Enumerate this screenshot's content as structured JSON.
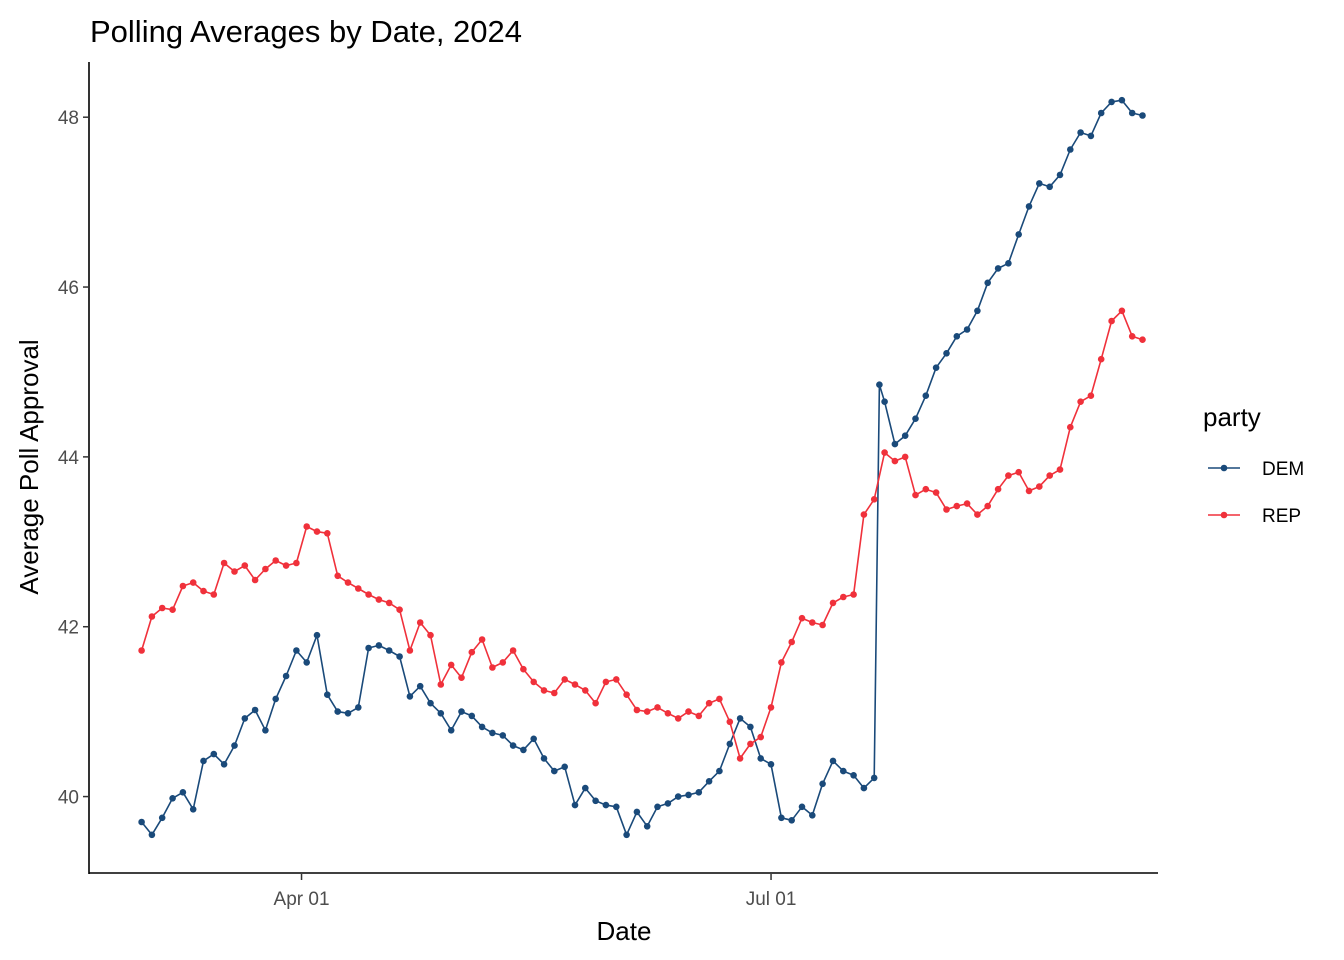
{
  "chart_data": {
    "type": "line",
    "title": "Polling Averages by Date, 2024",
    "xlabel": "Date",
    "ylabel": "Average Poll Approval",
    "x_ticks": [
      {
        "date": "2024-04-01",
        "label": "Apr 01"
      },
      {
        "date": "2024-07-01",
        "label": "Jul 01"
      }
    ],
    "y_ticks": [
      40,
      42,
      44,
      46,
      48
    ],
    "xlim": [
      "2024-02-20",
      "2024-09-14"
    ],
    "ylim": [
      39.1,
      48.65
    ],
    "grid": false,
    "legend": {
      "title": "party",
      "position": "right"
    },
    "series": [
      {
        "name": "DEM",
        "color": "#1a4a7a",
        "marker": "circle",
        "points": [
          [
            "2024-03-01",
            39.7
          ],
          [
            "2024-03-03",
            39.55
          ],
          [
            "2024-03-05",
            39.75
          ],
          [
            "2024-03-07",
            39.98
          ],
          [
            "2024-03-09",
            40.05
          ],
          [
            "2024-03-11",
            39.85
          ],
          [
            "2024-03-13",
            40.42
          ],
          [
            "2024-03-15",
            40.5
          ],
          [
            "2024-03-17",
            40.38
          ],
          [
            "2024-03-19",
            40.6
          ],
          [
            "2024-03-21",
            40.92
          ],
          [
            "2024-03-23",
            41.02
          ],
          [
            "2024-03-25",
            40.78
          ],
          [
            "2024-03-27",
            41.15
          ],
          [
            "2024-03-29",
            41.42
          ],
          [
            "2024-03-31",
            41.72
          ],
          [
            "2024-04-02",
            41.58
          ],
          [
            "2024-04-04",
            41.9
          ],
          [
            "2024-04-06",
            41.2
          ],
          [
            "2024-04-08",
            41.0
          ],
          [
            "2024-04-10",
            40.98
          ],
          [
            "2024-04-12",
            41.05
          ],
          [
            "2024-04-14",
            41.75
          ],
          [
            "2024-04-16",
            41.78
          ],
          [
            "2024-04-18",
            41.72
          ],
          [
            "2024-04-20",
            41.65
          ],
          [
            "2024-04-22",
            41.18
          ],
          [
            "2024-04-24",
            41.3
          ],
          [
            "2024-04-26",
            41.1
          ],
          [
            "2024-04-28",
            40.98
          ],
          [
            "2024-04-30",
            40.78
          ],
          [
            "2024-05-02",
            41.0
          ],
          [
            "2024-05-04",
            40.95
          ],
          [
            "2024-05-06",
            40.82
          ],
          [
            "2024-05-08",
            40.75
          ],
          [
            "2024-05-10",
            40.72
          ],
          [
            "2024-05-12",
            40.6
          ],
          [
            "2024-05-14",
            40.55
          ],
          [
            "2024-05-16",
            40.68
          ],
          [
            "2024-05-18",
            40.45
          ],
          [
            "2024-05-20",
            40.3
          ],
          [
            "2024-05-22",
            40.35
          ],
          [
            "2024-05-24",
            39.9
          ],
          [
            "2024-05-26",
            40.1
          ],
          [
            "2024-05-28",
            39.95
          ],
          [
            "2024-05-30",
            39.9
          ],
          [
            "2024-06-01",
            39.88
          ],
          [
            "2024-06-03",
            39.55
          ],
          [
            "2024-06-05",
            39.82
          ],
          [
            "2024-06-07",
            39.65
          ],
          [
            "2024-06-09",
            39.88
          ],
          [
            "2024-06-11",
            39.92
          ],
          [
            "2024-06-13",
            40.0
          ],
          [
            "2024-06-15",
            40.02
          ],
          [
            "2024-06-17",
            40.05
          ],
          [
            "2024-06-19",
            40.18
          ],
          [
            "2024-06-21",
            40.3
          ],
          [
            "2024-06-23",
            40.62
          ],
          [
            "2024-06-25",
            40.92
          ],
          [
            "2024-06-27",
            40.82
          ],
          [
            "2024-06-29",
            40.45
          ],
          [
            "2024-07-01",
            40.38
          ],
          [
            "2024-07-03",
            39.75
          ],
          [
            "2024-07-05",
            39.72
          ],
          [
            "2024-07-07",
            39.88
          ],
          [
            "2024-07-09",
            39.78
          ],
          [
            "2024-07-11",
            40.15
          ],
          [
            "2024-07-13",
            40.42
          ],
          [
            "2024-07-15",
            40.3
          ],
          [
            "2024-07-17",
            40.25
          ],
          [
            "2024-07-19",
            40.1
          ],
          [
            "2024-07-21",
            40.22
          ],
          [
            "2024-07-22",
            44.85
          ],
          [
            "2024-07-23",
            44.65
          ],
          [
            "2024-07-25",
            44.15
          ],
          [
            "2024-07-27",
            44.25
          ],
          [
            "2024-07-29",
            44.45
          ],
          [
            "2024-07-31",
            44.72
          ],
          [
            "2024-08-02",
            45.05
          ],
          [
            "2024-08-04",
            45.22
          ],
          [
            "2024-08-06",
            45.42
          ],
          [
            "2024-08-08",
            45.5
          ],
          [
            "2024-08-10",
            45.72
          ],
          [
            "2024-08-12",
            46.05
          ],
          [
            "2024-08-14",
            46.22
          ],
          [
            "2024-08-16",
            46.28
          ],
          [
            "2024-08-18",
            46.62
          ],
          [
            "2024-08-20",
            46.95
          ],
          [
            "2024-08-22",
            47.22
          ],
          [
            "2024-08-24",
            47.18
          ],
          [
            "2024-08-26",
            47.32
          ],
          [
            "2024-08-28",
            47.62
          ],
          [
            "2024-08-30",
            47.82
          ],
          [
            "2024-09-01",
            47.78
          ],
          [
            "2024-09-03",
            48.05
          ],
          [
            "2024-09-05",
            48.18
          ],
          [
            "2024-09-07",
            48.2
          ],
          [
            "2024-09-09",
            48.05
          ],
          [
            "2024-09-11",
            48.02
          ]
        ]
      },
      {
        "name": "REP",
        "color": "#f0313b",
        "marker": "circle",
        "points": [
          [
            "2024-03-01",
            41.72
          ],
          [
            "2024-03-03",
            42.12
          ],
          [
            "2024-03-05",
            42.22
          ],
          [
            "2024-03-07",
            42.2
          ],
          [
            "2024-03-09",
            42.48
          ],
          [
            "2024-03-11",
            42.52
          ],
          [
            "2024-03-13",
            42.42
          ],
          [
            "2024-03-15",
            42.38
          ],
          [
            "2024-03-17",
            42.75
          ],
          [
            "2024-03-19",
            42.65
          ],
          [
            "2024-03-21",
            42.72
          ],
          [
            "2024-03-23",
            42.55
          ],
          [
            "2024-03-25",
            42.68
          ],
          [
            "2024-03-27",
            42.78
          ],
          [
            "2024-03-29",
            42.72
          ],
          [
            "2024-03-31",
            42.75
          ],
          [
            "2024-04-02",
            43.18
          ],
          [
            "2024-04-04",
            43.12
          ],
          [
            "2024-04-06",
            43.1
          ],
          [
            "2024-04-08",
            42.6
          ],
          [
            "2024-04-10",
            42.52
          ],
          [
            "2024-04-12",
            42.45
          ],
          [
            "2024-04-14",
            42.38
          ],
          [
            "2024-04-16",
            42.32
          ],
          [
            "2024-04-18",
            42.28
          ],
          [
            "2024-04-20",
            42.2
          ],
          [
            "2024-04-22",
            41.72
          ],
          [
            "2024-04-24",
            42.05
          ],
          [
            "2024-04-26",
            41.9
          ],
          [
            "2024-04-28",
            41.32
          ],
          [
            "2024-04-30",
            41.55
          ],
          [
            "2024-05-02",
            41.4
          ],
          [
            "2024-05-04",
            41.7
          ],
          [
            "2024-05-06",
            41.85
          ],
          [
            "2024-05-08",
            41.52
          ],
          [
            "2024-05-10",
            41.58
          ],
          [
            "2024-05-12",
            41.72
          ],
          [
            "2024-05-14",
            41.5
          ],
          [
            "2024-05-16",
            41.35
          ],
          [
            "2024-05-18",
            41.25
          ],
          [
            "2024-05-20",
            41.22
          ],
          [
            "2024-05-22",
            41.38
          ],
          [
            "2024-05-24",
            41.32
          ],
          [
            "2024-05-26",
            41.25
          ],
          [
            "2024-05-28",
            41.1
          ],
          [
            "2024-05-30",
            41.35
          ],
          [
            "2024-06-01",
            41.38
          ],
          [
            "2024-06-03",
            41.2
          ],
          [
            "2024-06-05",
            41.02
          ],
          [
            "2024-06-07",
            41.0
          ],
          [
            "2024-06-09",
            41.05
          ],
          [
            "2024-06-11",
            40.98
          ],
          [
            "2024-06-13",
            40.92
          ],
          [
            "2024-06-15",
            41.0
          ],
          [
            "2024-06-17",
            40.95
          ],
          [
            "2024-06-19",
            41.1
          ],
          [
            "2024-06-21",
            41.15
          ],
          [
            "2024-06-23",
            40.88
          ],
          [
            "2024-06-25",
            40.45
          ],
          [
            "2024-06-27",
            40.62
          ],
          [
            "2024-06-29",
            40.7
          ],
          [
            "2024-07-01",
            41.05
          ],
          [
            "2024-07-03",
            41.58
          ],
          [
            "2024-07-05",
            41.82
          ],
          [
            "2024-07-07",
            42.1
          ],
          [
            "2024-07-09",
            42.05
          ],
          [
            "2024-07-11",
            42.02
          ],
          [
            "2024-07-13",
            42.28
          ],
          [
            "2024-07-15",
            42.35
          ],
          [
            "2024-07-17",
            42.38
          ],
          [
            "2024-07-19",
            43.32
          ],
          [
            "2024-07-21",
            43.5
          ],
          [
            "2024-07-23",
            44.05
          ],
          [
            "2024-07-25",
            43.95
          ],
          [
            "2024-07-27",
            44.0
          ],
          [
            "2024-07-29",
            43.55
          ],
          [
            "2024-07-31",
            43.62
          ],
          [
            "2024-08-02",
            43.58
          ],
          [
            "2024-08-04",
            43.38
          ],
          [
            "2024-08-06",
            43.42
          ],
          [
            "2024-08-08",
            43.45
          ],
          [
            "2024-08-10",
            43.32
          ],
          [
            "2024-08-12",
            43.42
          ],
          [
            "2024-08-14",
            43.62
          ],
          [
            "2024-08-16",
            43.78
          ],
          [
            "2024-08-18",
            43.82
          ],
          [
            "2024-08-20",
            43.6
          ],
          [
            "2024-08-22",
            43.65
          ],
          [
            "2024-08-24",
            43.78
          ],
          [
            "2024-08-26",
            43.85
          ],
          [
            "2024-08-28",
            44.35
          ],
          [
            "2024-08-30",
            44.65
          ],
          [
            "2024-09-01",
            44.72
          ],
          [
            "2024-09-03",
            45.15
          ],
          [
            "2024-09-05",
            45.6
          ],
          [
            "2024-09-07",
            45.72
          ],
          [
            "2024-09-09",
            45.42
          ],
          [
            "2024-09-11",
            45.38
          ]
        ]
      }
    ]
  }
}
